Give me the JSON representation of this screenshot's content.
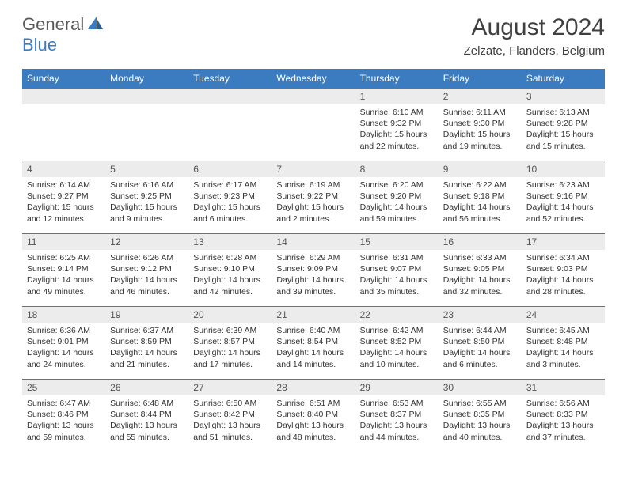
{
  "logo": {
    "general": "General",
    "blue": "Blue",
    "iconColor": "#3b7bbf"
  },
  "header": {
    "monthTitle": "August 2024",
    "location": "Zelzate, Flanders, Belgium"
  },
  "colors": {
    "headerBg": "#3b7bbf",
    "headerText": "#ffffff",
    "dayNumBg": "#ececec",
    "rowBorder": "#3b7bbf",
    "bodyText": "#333333"
  },
  "weekdays": [
    "Sunday",
    "Monday",
    "Tuesday",
    "Wednesday",
    "Thursday",
    "Friday",
    "Saturday"
  ],
  "firstDayOffset": 4,
  "days": [
    {
      "n": 1,
      "sunrise": "6:10 AM",
      "sunset": "9:32 PM",
      "daylight": "15 hours and 22 minutes."
    },
    {
      "n": 2,
      "sunrise": "6:11 AM",
      "sunset": "9:30 PM",
      "daylight": "15 hours and 19 minutes."
    },
    {
      "n": 3,
      "sunrise": "6:13 AM",
      "sunset": "9:28 PM",
      "daylight": "15 hours and 15 minutes."
    },
    {
      "n": 4,
      "sunrise": "6:14 AM",
      "sunset": "9:27 PM",
      "daylight": "15 hours and 12 minutes."
    },
    {
      "n": 5,
      "sunrise": "6:16 AM",
      "sunset": "9:25 PM",
      "daylight": "15 hours and 9 minutes."
    },
    {
      "n": 6,
      "sunrise": "6:17 AM",
      "sunset": "9:23 PM",
      "daylight": "15 hours and 6 minutes."
    },
    {
      "n": 7,
      "sunrise": "6:19 AM",
      "sunset": "9:22 PM",
      "daylight": "15 hours and 2 minutes."
    },
    {
      "n": 8,
      "sunrise": "6:20 AM",
      "sunset": "9:20 PM",
      "daylight": "14 hours and 59 minutes."
    },
    {
      "n": 9,
      "sunrise": "6:22 AM",
      "sunset": "9:18 PM",
      "daylight": "14 hours and 56 minutes."
    },
    {
      "n": 10,
      "sunrise": "6:23 AM",
      "sunset": "9:16 PM",
      "daylight": "14 hours and 52 minutes."
    },
    {
      "n": 11,
      "sunrise": "6:25 AM",
      "sunset": "9:14 PM",
      "daylight": "14 hours and 49 minutes."
    },
    {
      "n": 12,
      "sunrise": "6:26 AM",
      "sunset": "9:12 PM",
      "daylight": "14 hours and 46 minutes."
    },
    {
      "n": 13,
      "sunrise": "6:28 AM",
      "sunset": "9:10 PM",
      "daylight": "14 hours and 42 minutes."
    },
    {
      "n": 14,
      "sunrise": "6:29 AM",
      "sunset": "9:09 PM",
      "daylight": "14 hours and 39 minutes."
    },
    {
      "n": 15,
      "sunrise": "6:31 AM",
      "sunset": "9:07 PM",
      "daylight": "14 hours and 35 minutes."
    },
    {
      "n": 16,
      "sunrise": "6:33 AM",
      "sunset": "9:05 PM",
      "daylight": "14 hours and 32 minutes."
    },
    {
      "n": 17,
      "sunrise": "6:34 AM",
      "sunset": "9:03 PM",
      "daylight": "14 hours and 28 minutes."
    },
    {
      "n": 18,
      "sunrise": "6:36 AM",
      "sunset": "9:01 PM",
      "daylight": "14 hours and 24 minutes."
    },
    {
      "n": 19,
      "sunrise": "6:37 AM",
      "sunset": "8:59 PM",
      "daylight": "14 hours and 21 minutes."
    },
    {
      "n": 20,
      "sunrise": "6:39 AM",
      "sunset": "8:57 PM",
      "daylight": "14 hours and 17 minutes."
    },
    {
      "n": 21,
      "sunrise": "6:40 AM",
      "sunset": "8:54 PM",
      "daylight": "14 hours and 14 minutes."
    },
    {
      "n": 22,
      "sunrise": "6:42 AM",
      "sunset": "8:52 PM",
      "daylight": "14 hours and 10 minutes."
    },
    {
      "n": 23,
      "sunrise": "6:44 AM",
      "sunset": "8:50 PM",
      "daylight": "14 hours and 6 minutes."
    },
    {
      "n": 24,
      "sunrise": "6:45 AM",
      "sunset": "8:48 PM",
      "daylight": "14 hours and 3 minutes."
    },
    {
      "n": 25,
      "sunrise": "6:47 AM",
      "sunset": "8:46 PM",
      "daylight": "13 hours and 59 minutes."
    },
    {
      "n": 26,
      "sunrise": "6:48 AM",
      "sunset": "8:44 PM",
      "daylight": "13 hours and 55 minutes."
    },
    {
      "n": 27,
      "sunrise": "6:50 AM",
      "sunset": "8:42 PM",
      "daylight": "13 hours and 51 minutes."
    },
    {
      "n": 28,
      "sunrise": "6:51 AM",
      "sunset": "8:40 PM",
      "daylight": "13 hours and 48 minutes."
    },
    {
      "n": 29,
      "sunrise": "6:53 AM",
      "sunset": "8:37 PM",
      "daylight": "13 hours and 44 minutes."
    },
    {
      "n": 30,
      "sunrise": "6:55 AM",
      "sunset": "8:35 PM",
      "daylight": "13 hours and 40 minutes."
    },
    {
      "n": 31,
      "sunrise": "6:56 AM",
      "sunset": "8:33 PM",
      "daylight": "13 hours and 37 minutes."
    }
  ],
  "labels": {
    "sunrise": "Sunrise:",
    "sunset": "Sunset:",
    "daylight": "Daylight:"
  }
}
